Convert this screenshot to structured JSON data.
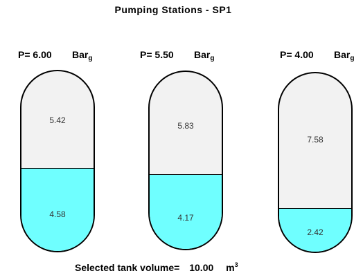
{
  "title": "Pumping Stations - SP1",
  "pressure_unit": "Bar",
  "pressure_unit_sub": "g",
  "tanks": [
    {
      "pressure": "P= 6.00",
      "upper_value": "5.42",
      "lower_value": "4.58",
      "fill_fraction": 0.458
    },
    {
      "pressure": "P= 5.50",
      "upper_value": "5.83",
      "lower_value": "4.17",
      "fill_fraction": 0.417
    },
    {
      "pressure": "P= 4.00",
      "upper_value": "7.58",
      "lower_value": "2.42",
      "fill_fraction": 0.242
    }
  ],
  "volume": {
    "label": "Selected tank volume=",
    "value": "10.00",
    "unit": "m",
    "unit_sup": "3"
  },
  "colors": {
    "liquid": "#6fffff",
    "empty": "#f2f2f2"
  }
}
